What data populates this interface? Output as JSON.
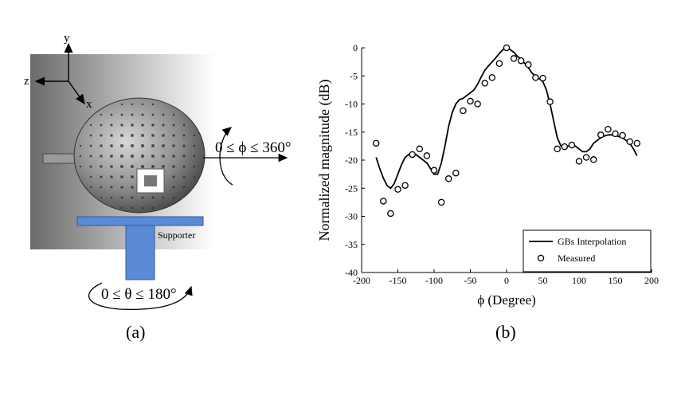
{
  "panel_a": {
    "caption": "(a)",
    "axis_y": "y",
    "axis_z": "z",
    "axis_x": "x",
    "phi_range": "0 ≤ ϕ ≤ 360°",
    "theta_range": "0 ≤ θ ≤ 180°",
    "supporter_label": "Supporter",
    "colors": {
      "supporter": "#5b8ad6",
      "background_dark": "#6f6f6f",
      "background_light": "#ffffff"
    },
    "icons": [
      "coordinate-axes-icon",
      "rotation-arrow-icon",
      "lens-antenna-icon"
    ]
  },
  "panel_b": {
    "caption": "(b)"
  },
  "chart_data": {
    "type": "line",
    "xlabel": "ϕ (Degree)",
    "ylabel": "Normalized magnitude (dB)",
    "xlim": [
      -200,
      200
    ],
    "ylim": [
      -40,
      0
    ],
    "xticks": [
      -200,
      -150,
      -100,
      -50,
      0,
      50,
      100,
      150,
      200
    ],
    "yticks": [
      0,
      -5,
      -10,
      -15,
      -20,
      -25,
      -30,
      -35,
      -40
    ],
    "grid": false,
    "legend_position": "bottom-right",
    "series": [
      {
        "name": "GBs Interpolation",
        "style": "line",
        "color": "#000000",
        "x": [
          -180,
          -175,
          -170,
          -165,
          -160,
          -155,
          -150,
          -145,
          -140,
          -135,
          -130,
          -125,
          -120,
          -115,
          -110,
          -105,
          -100,
          -95,
          -90,
          -85,
          -80,
          -75,
          -70,
          -65,
          -60,
          -55,
          -50,
          -45,
          -40,
          -35,
          -30,
          -25,
          -20,
          -15,
          -10,
          -5,
          0,
          5,
          10,
          15,
          20,
          25,
          30,
          35,
          40,
          45,
          50,
          55,
          60,
          65,
          70,
          75,
          80,
          85,
          90,
          95,
          100,
          105,
          110,
          115,
          120,
          125,
          130,
          135,
          140,
          145,
          150,
          155,
          160,
          165,
          170,
          175,
          180
        ],
        "y": [
          -19.5,
          -21.5,
          -23.2,
          -24.5,
          -25,
          -24.2,
          -22.5,
          -20.8,
          -19.5,
          -19,
          -19,
          -19,
          -19.5,
          -20,
          -20.5,
          -21.5,
          -22.5,
          -22.5,
          -20.5,
          -17.5,
          -14,
          -11.5,
          -10,
          -9.2,
          -9,
          -8.5,
          -8,
          -7.5,
          -6.5,
          -5.2,
          -4,
          -3.2,
          -2.5,
          -1.8,
          -1,
          -0.3,
          0,
          -0.3,
          -0.8,
          -1.5,
          -2,
          -2.8,
          -3.5,
          -4.5,
          -5,
          -5.5,
          -6,
          -7.5,
          -10,
          -13,
          -16,
          -17.5,
          -17.8,
          -17.5,
          -17.3,
          -17.5,
          -18,
          -18.5,
          -18.5,
          -18,
          -17,
          -16.5,
          -16,
          -15.7,
          -15.5,
          -15.5,
          -15.6,
          -15.8,
          -16,
          -16.5,
          -17,
          -18,
          -19.2
        ]
      },
      {
        "name": "Measured",
        "style": "marker-circle",
        "color": "#000000",
        "x": [
          -180,
          -170,
          -160,
          -150,
          -140,
          -130,
          -120,
          -110,
          -100,
          -90,
          -80,
          -70,
          -60,
          -50,
          -40,
          -30,
          -20,
          -10,
          0,
          10,
          20,
          30,
          40,
          50,
          60,
          70,
          80,
          90,
          100,
          110,
          120,
          130,
          140,
          150,
          160,
          170,
          180
        ],
        "y": [
          -17,
          -27.3,
          -29.5,
          -25.2,
          -24.5,
          -19,
          -18,
          -19.2,
          -21.8,
          -27.5,
          -23.3,
          -22.3,
          -11.2,
          -9.5,
          -10,
          -6.3,
          -5.3,
          -2.8,
          0,
          -1.9,
          -2.3,
          -3,
          -5.3,
          -5.4,
          -9.6,
          -18,
          -17.6,
          -17.3,
          -20.2,
          -19.5,
          -19.9,
          -15.5,
          -14.5,
          -15.3,
          -15.6,
          -16.7,
          -17
        ]
      }
    ]
  }
}
